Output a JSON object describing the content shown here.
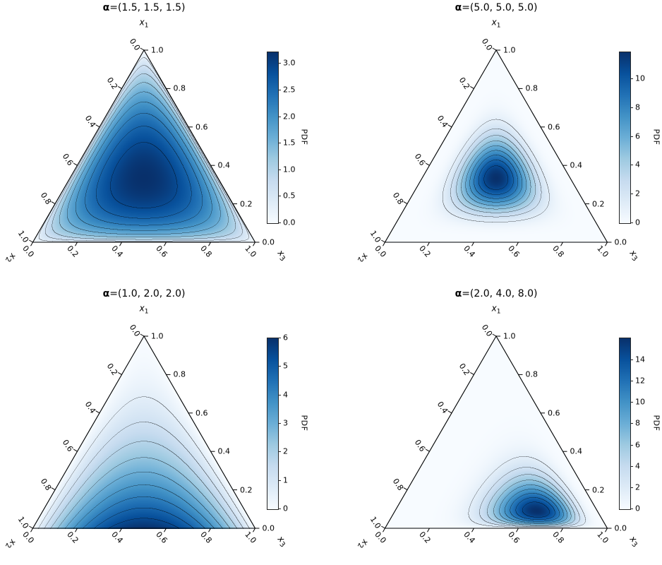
{
  "figure": {
    "background": "#ffffff",
    "grid": [
      2,
      2
    ],
    "colormap": {
      "name": "Blues",
      "stops": [
        "#f7fbff",
        "#deebf7",
        "#c6dbef",
        "#9ecae1",
        "#6baed6",
        "#4292c6",
        "#2171b5",
        "#08519c",
        "#08306b"
      ]
    },
    "contour_line_color": "#1a1a1a",
    "spine_color": "#000000"
  },
  "chart_data": [
    {
      "type": "ternary-contour",
      "distribution": "Dirichlet",
      "title": {
        "bold": "α",
        "rest": "=(1.5, 1.5, 1.5)"
      },
      "alpha": [
        1.5,
        1.5,
        1.5
      ],
      "axis_labels": {
        "top": {
          "base": "x",
          "sub": "1"
        },
        "left": {
          "base": "x",
          "sub": "2"
        },
        "right": {
          "base": "x",
          "sub": "3"
        }
      },
      "left_ticks": [
        "0.0",
        "0.2",
        "0.4",
        "0.6",
        "0.8",
        "1.0"
      ],
      "right_ticks": [
        "1.0",
        "0.8",
        "0.6",
        "0.4",
        "0.2",
        "0.0"
      ],
      "bottom_ticks": [
        "0.0",
        "0.2",
        "0.4",
        "0.6",
        "0.8",
        "1.0"
      ],
      "fill": "smooth-gradient",
      "contour_lines": 9,
      "colorbar": {
        "label": "PDF",
        "ticks": [
          "0.0",
          "0.5",
          "1.0",
          "1.5",
          "2.0",
          "2.5",
          "3.0"
        ],
        "tick_values": [
          0,
          0.5,
          1,
          1.5,
          2,
          2.5,
          3
        ],
        "range_max_approx": 3.22
      }
    },
    {
      "type": "ternary-contour",
      "distribution": "Dirichlet",
      "title": {
        "bold": "α",
        "rest": "=(5.0, 5.0, 5.0)"
      },
      "alpha": [
        5.0,
        5.0,
        5.0
      ],
      "axis_labels": {
        "top": {
          "base": "x",
          "sub": "1"
        },
        "left": {
          "base": "x",
          "sub": "2"
        },
        "right": {
          "base": "x",
          "sub": "3"
        }
      },
      "left_ticks": [
        "0.0",
        "0.2",
        "0.4",
        "0.6",
        "0.8",
        "1.0"
      ],
      "right_ticks": [
        "1.0",
        "0.8",
        "0.6",
        "0.4",
        "0.2",
        "0.0"
      ],
      "bottom_ticks": [
        "0.0",
        "0.2",
        "0.4",
        "0.6",
        "0.8",
        "1.0"
      ],
      "fill": "smooth-gradient",
      "contour_lines": 9,
      "colorbar": {
        "label": "PDF",
        "ticks": [
          "0",
          "2",
          "4",
          "6",
          "8",
          "10"
        ],
        "tick_values": [
          0,
          2,
          4,
          6,
          8,
          10
        ],
        "range_max_approx": 11.9
      }
    },
    {
      "type": "ternary-contour",
      "distribution": "Dirichlet",
      "title": {
        "bold": "α",
        "rest": "=(1.0, 2.0, 2.0)"
      },
      "alpha": [
        1.0,
        2.0,
        2.0
      ],
      "axis_labels": {
        "top": {
          "base": "x",
          "sub": "1"
        },
        "left": {
          "base": "x",
          "sub": "2"
        },
        "right": {
          "base": "x",
          "sub": "3"
        }
      },
      "left_ticks": [
        "0.0",
        "0.2",
        "0.4",
        "0.6",
        "0.8",
        "1.0"
      ],
      "right_ticks": [
        "1.0",
        "0.8",
        "0.6",
        "0.4",
        "0.2",
        "0.0"
      ],
      "bottom_ticks": [
        "0.0",
        "0.2",
        "0.4",
        "0.6",
        "0.8",
        "1.0"
      ],
      "fill": "smooth-gradient",
      "contour_lines": 9,
      "colorbar": {
        "label": "PDF",
        "ticks": [
          "0",
          "1",
          "2",
          "3",
          "4",
          "5",
          "6"
        ],
        "tick_values": [
          0,
          1,
          2,
          3,
          4,
          5,
          6
        ],
        "range_max_approx": 6.0
      }
    },
    {
      "type": "ternary-contour",
      "distribution": "Dirichlet",
      "title": {
        "bold": "α",
        "rest": "=(2.0, 4.0, 8.0)"
      },
      "alpha": [
        2.0,
        4.0,
        8.0
      ],
      "axis_labels": {
        "top": {
          "base": "x",
          "sub": "1"
        },
        "left": {
          "base": "x",
          "sub": "2"
        },
        "right": {
          "base": "x",
          "sub": "3"
        }
      },
      "left_ticks": [
        "0.0",
        "0.2",
        "0.4",
        "0.6",
        "0.8",
        "1.0"
      ],
      "right_ticks": [
        "1.0",
        "0.8",
        "0.6",
        "0.4",
        "0.2",
        "0.0"
      ],
      "bottom_ticks": [
        "0.0",
        "0.2",
        "0.4",
        "0.6",
        "0.8",
        "1.0"
      ],
      "fill": "smooth-gradient",
      "contour_lines": 9,
      "colorbar": {
        "label": "PDF",
        "ticks": [
          "0",
          "2",
          "4",
          "6",
          "8",
          "10",
          "12",
          "14"
        ],
        "tick_values": [
          0,
          2,
          4,
          6,
          8,
          10,
          12,
          14
        ],
        "range_max_approx": 16.0
      }
    }
  ]
}
